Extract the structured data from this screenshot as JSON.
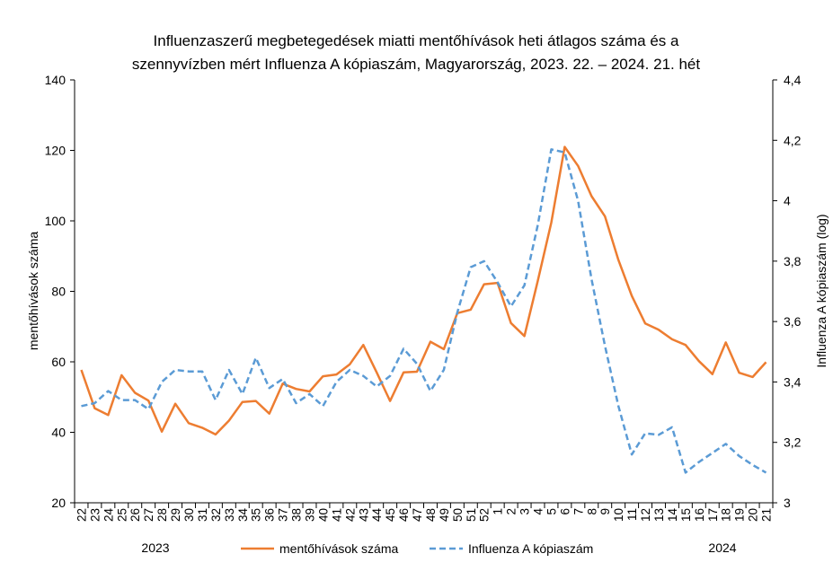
{
  "chart_data": {
    "type": "line",
    "title": [
      "Influenzaszerű megbetegedések miatti mentőhívások heti átlagos száma és a",
      "szennyvízben mért Influenza A kópiaszám, Magyarország, 2023. 22. – 2024. 21. hét"
    ],
    "ylabel": "mentőhívások száma",
    "y2label": "Influenza A kópiaszám (log)",
    "ylim": [
      20,
      140
    ],
    "y2lim": [
      3.0,
      4.4
    ],
    "yticks": [
      "20",
      "40",
      "60",
      "80",
      "100",
      "120",
      "140"
    ],
    "y2ticks": [
      "3",
      "3,2",
      "3,4",
      "3,6",
      "3,8",
      "4",
      "4,2",
      "4,4"
    ],
    "categories": [
      "22",
      "23",
      "24",
      "25",
      "26",
      "27",
      "28",
      "29",
      "30",
      "31",
      "32",
      "33",
      "34",
      "35",
      "36",
      "37",
      "38",
      "39",
      "40",
      "41",
      "42",
      "43",
      "44",
      "45",
      "46",
      "47",
      "48",
      "49",
      "50",
      "51",
      "52",
      "1",
      "2",
      "3",
      "4",
      "5",
      "6",
      "7",
      "8",
      "9",
      "10",
      "11",
      "12",
      "13",
      "14",
      "15",
      "16",
      "17",
      "18",
      "19",
      "20",
      "21"
    ],
    "year_labels": [
      "2023",
      "2024"
    ],
    "series": [
      {
        "name": "mentőhívások száma",
        "axis": "left",
        "color": "#ED7D31",
        "style": "solid",
        "values": [
          57.7,
          46.8,
          44.9,
          56.2,
          51.2,
          49.0,
          40.2,
          48.1,
          42.6,
          41.3,
          39.4,
          43.3,
          48.6,
          48.9,
          45.3,
          53.8,
          52.3,
          51.6,
          55.9,
          56.4,
          59.3,
          64.8,
          57.0,
          48.9,
          57.0,
          57.2,
          65.7,
          63.6,
          73.8,
          74.8,
          82.0,
          82.4,
          71.0,
          67.3,
          83.0,
          99.5,
          121.0,
          115.6,
          107.0,
          101.3,
          88.9,
          78.7,
          70.9,
          69.1,
          66.4,
          64.8,
          60.2,
          56.5,
          65.5,
          56.9,
          55.7,
          59.9
        ]
      },
      {
        "name": "Influenza A kópiaszám",
        "axis": "right",
        "color": "#5B9BD5",
        "style": "dashed",
        "values": [
          3.32,
          3.33,
          3.37,
          3.34,
          3.34,
          3.31,
          3.4,
          3.44,
          3.435,
          3.435,
          3.34,
          3.44,
          3.36,
          3.48,
          3.38,
          3.41,
          3.33,
          3.36,
          3.32,
          3.4,
          3.44,
          3.42,
          3.385,
          3.42,
          3.51,
          3.46,
          3.37,
          3.44,
          3.63,
          3.78,
          3.8,
          3.73,
          3.65,
          3.72,
          3.92,
          4.17,
          4.16,
          4.0,
          3.74,
          3.52,
          3.32,
          3.16,
          3.23,
          3.225,
          3.25,
          3.1,
          3.135,
          3.165,
          3.195,
          3.155,
          3.125,
          3.1
        ]
      }
    ],
    "legend_position": "bottom"
  }
}
